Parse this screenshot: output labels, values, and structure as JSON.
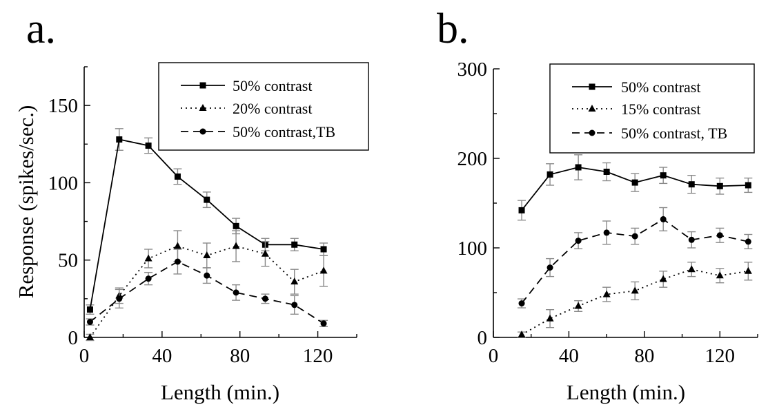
{
  "chart_data": [
    {
      "type": "line",
      "panel_label": "a.",
      "xlabel": "Length (min.)",
      "ylabel": "Response (spikes/sec.)",
      "xlim": [
        0,
        140
      ],
      "ylim": [
        0,
        175
      ],
      "xticks": [
        0,
        40,
        80,
        120
      ],
      "yticks": [
        0,
        50,
        100,
        150
      ],
      "legend_position": "top-right",
      "series": [
        {
          "name": "50% contrast",
          "style": "solid",
          "marker": "square",
          "x": [
            3,
            18,
            33,
            48,
            63,
            78,
            93,
            108,
            123
          ],
          "values": [
            18,
            128,
            124,
            104,
            89,
            72,
            60,
            60,
            57
          ],
          "errors": [
            3,
            7,
            5,
            5,
            5,
            5,
            4,
            4,
            4
          ]
        },
        {
          "name": "20% contrast",
          "style": "dotted",
          "marker": "triangle",
          "x": [
            3,
            18,
            33,
            48,
            63,
            78,
            93,
            108,
            123
          ],
          "values": [
            0,
            27,
            51,
            59,
            53,
            59,
            54,
            36,
            43
          ],
          "errors": [
            2,
            5,
            6,
            10,
            8,
            10,
            8,
            8,
            10
          ]
        },
        {
          "name": "50% contrast,TB",
          "style": "dashed",
          "marker": "circle",
          "x": [
            3,
            18,
            33,
            48,
            63,
            78,
            93,
            108,
            123
          ],
          "values": [
            10,
            25,
            38,
            49,
            40,
            29,
            25,
            21,
            9
          ],
          "errors": [
            2,
            6,
            4,
            8,
            5,
            5,
            3,
            6,
            2
          ]
        }
      ]
    },
    {
      "type": "line",
      "panel_label": "b.",
      "xlabel": "Length (min.)",
      "ylabel": "",
      "xlim": [
        0,
        140
      ],
      "ylim": [
        0,
        300
      ],
      "xticks": [
        0,
        40,
        80,
        120
      ],
      "yticks": [
        0,
        100,
        200,
        300
      ],
      "legend_position": "top-right",
      "series": [
        {
          "name": "50% contrast",
          "style": "solid",
          "marker": "square",
          "x": [
            15,
            30,
            45,
            60,
            75,
            90,
            105,
            120,
            135
          ],
          "values": [
            142,
            182,
            190,
            185,
            173,
            181,
            171,
            169,
            170
          ],
          "errors": [
            11,
            12,
            14,
            10,
            10,
            9,
            10,
            9,
            8
          ]
        },
        {
          "name": "15% contrast",
          "style": "dotted",
          "marker": "triangle",
          "x": [
            15,
            30,
            45,
            60,
            75,
            90,
            105,
            120,
            135
          ],
          "values": [
            3,
            21,
            35,
            48,
            52,
            65,
            76,
            69,
            74
          ],
          "errors": [
            3,
            10,
            6,
            8,
            10,
            9,
            8,
            8,
            10
          ]
        },
        {
          "name": "50% contrast, TB",
          "style": "dashed",
          "marker": "circle",
          "x": [
            15,
            30,
            45,
            60,
            75,
            90,
            105,
            120,
            135
          ],
          "values": [
            38,
            78,
            108,
            117,
            113,
            132,
            109,
            114,
            107
          ],
          "errors": [
            5,
            10,
            9,
            13,
            9,
            13,
            9,
            8,
            8
          ]
        }
      ]
    }
  ]
}
